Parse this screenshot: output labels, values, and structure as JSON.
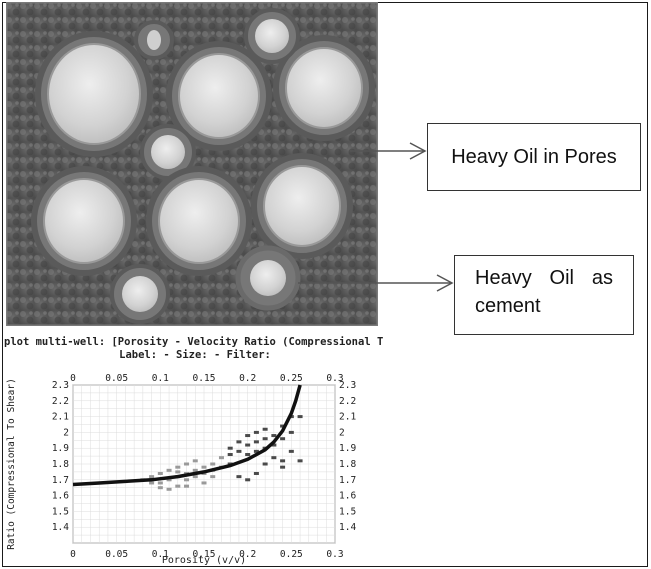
{
  "callouts": {
    "pores_label": "Heavy Oil in Pores",
    "cement_label_line1": "Heavy Oil as",
    "cement_label_line2": "cement"
  },
  "chart_data": {
    "type": "scatter",
    "title": "plot multi-well: [Porosity - Velocity Ratio (Compressional T",
    "subtitle": "Label:  -  Size:  -  Filter:",
    "xlabel": "Porosity (v/v)",
    "ylabel": "Ratio (Compressional To Shear)",
    "xlim": [
      0,
      0.3
    ],
    "ylim": [
      1.3,
      2.3
    ],
    "x_ticks": [
      "0",
      "0.05",
      "0.1",
      "0.15",
      "0.2",
      "0.25",
      "0.3"
    ],
    "y_ticks": [
      "1.4",
      "1.5",
      "1.6",
      "1.7",
      "1.8",
      "1.9",
      "2",
      "2.1",
      "2.2",
      "2.3"
    ],
    "grid": true,
    "series": [
      {
        "values": [
          [
            0.08,
            1.7
          ],
          [
            0.09,
            1.72
          ],
          [
            0.1,
            1.68
          ],
          [
            0.1,
            1.74
          ],
          [
            0.11,
            1.7
          ],
          [
            0.11,
            1.76
          ],
          [
            0.12,
            1.72
          ],
          [
            0.12,
            1.66
          ],
          [
            0.12,
            1.78
          ],
          [
            0.13,
            1.74
          ],
          [
            0.13,
            1.7
          ],
          [
            0.13,
            1.8
          ],
          [
            0.14,
            1.76
          ],
          [
            0.14,
            1.72
          ],
          [
            0.14,
            1.82
          ],
          [
            0.15,
            1.78
          ],
          [
            0.15,
            1.74
          ],
          [
            0.15,
            1.68
          ],
          [
            0.16,
            1.8
          ],
          [
            0.16,
            1.76
          ],
          [
            0.17,
            1.78
          ],
          [
            0.17,
            1.84
          ],
          [
            0.1,
            1.65
          ],
          [
            0.11,
            1.64
          ],
          [
            0.13,
            1.66
          ],
          [
            0.16,
            1.72
          ],
          [
            0.09,
            1.68
          ],
          [
            0.12,
            1.75
          ]
        ]
      },
      {
        "values": [
          [
            0.18,
            1.86
          ],
          [
            0.18,
            1.9
          ],
          [
            0.19,
            1.88
          ],
          [
            0.19,
            1.94
          ],
          [
            0.2,
            1.92
          ],
          [
            0.2,
            1.86
          ],
          [
            0.2,
            1.98
          ],
          [
            0.21,
            1.94
          ],
          [
            0.21,
            1.88
          ],
          [
            0.21,
            2.0
          ],
          [
            0.22,
            1.96
          ],
          [
            0.22,
            1.9
          ],
          [
            0.22,
            2.02
          ],
          [
            0.23,
            1.98
          ],
          [
            0.23,
            1.84
          ],
          [
            0.23,
            1.92
          ],
          [
            0.24,
            2.04
          ],
          [
            0.24,
            1.96
          ],
          [
            0.24,
            1.82
          ],
          [
            0.25,
            2.1
          ],
          [
            0.25,
            2.0
          ],
          [
            0.25,
            1.88
          ],
          [
            0.26,
            2.1
          ],
          [
            0.26,
            1.82
          ],
          [
            0.22,
            1.8
          ],
          [
            0.21,
            1.74
          ],
          [
            0.19,
            1.72
          ],
          [
            0.18,
            1.8
          ],
          [
            0.24,
            1.78
          ],
          [
            0.2,
            1.7
          ]
        ]
      }
    ],
    "trend_curve": [
      [
        0.0,
        1.67
      ],
      [
        0.03,
        1.68
      ],
      [
        0.06,
        1.69
      ],
      [
        0.09,
        1.7
      ],
      [
        0.12,
        1.72
      ],
      [
        0.15,
        1.75
      ],
      [
        0.18,
        1.79
      ],
      [
        0.2,
        1.83
      ],
      [
        0.22,
        1.89
      ],
      [
        0.23,
        1.94
      ],
      [
        0.24,
        2.01
      ],
      [
        0.25,
        2.12
      ],
      [
        0.255,
        2.2
      ],
      [
        0.26,
        2.3
      ]
    ],
    "colors": {
      "trend": "#111111",
      "series_a": "#9a9a9a",
      "series_b": "#4a4a4a",
      "grid": "#dcdcdc"
    }
  }
}
